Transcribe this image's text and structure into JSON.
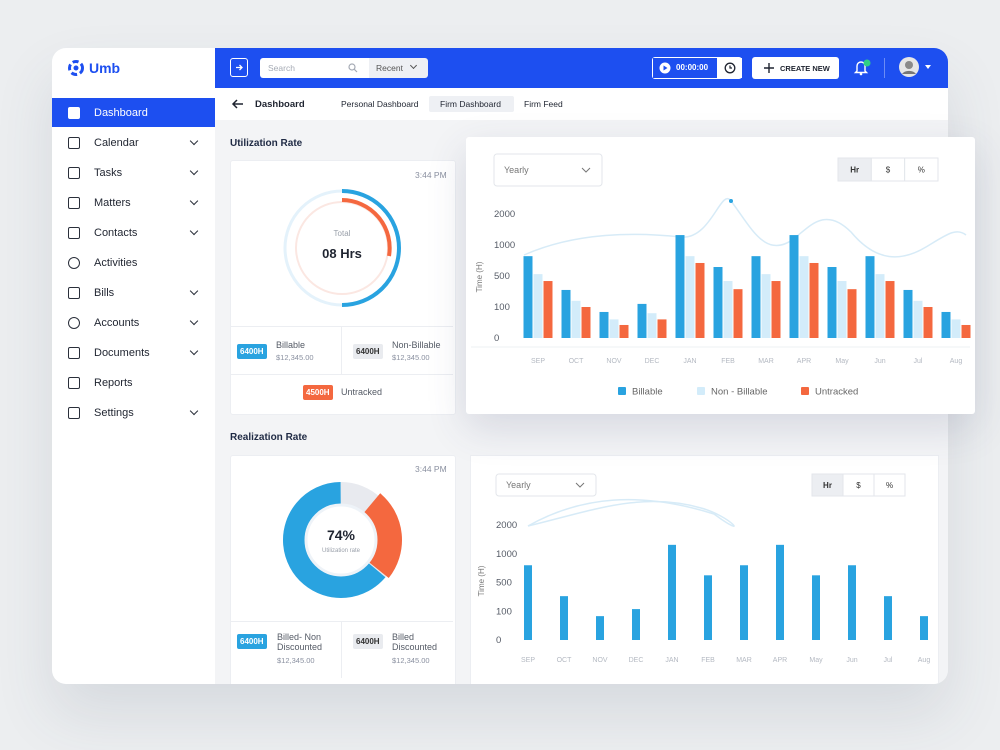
{
  "sidebar": {
    "brand": "Umb",
    "items": [
      "Dashboard",
      "Calendar",
      "Tasks",
      "Matters",
      "Contacts",
      "Activities",
      "Bills",
      "Accounts",
      "Documents",
      "Reports",
      "Settings"
    ]
  },
  "topbar": {
    "search": "Search",
    "recent": "Recent",
    "timer": "00:00:00",
    "create": "CREATE NEW"
  },
  "tabs": {
    "title": "Dashboard",
    "items": [
      "Personal Dashboard",
      "Firm Dashboard",
      "Firm Feed"
    ]
  },
  "utilization": {
    "heading": "Utilization Rate",
    "time": "3:44 PM",
    "center_label": "Total",
    "center_value": "08 Hrs",
    "stats": [
      {
        "badge": "6400H",
        "label": "Billable",
        "amount": "$12,345.00"
      },
      {
        "badge": "6400H",
        "label": "Non-Billable",
        "amount": "$12,345.00"
      }
    ],
    "untracked": {
      "badge": "4500H",
      "label": "Untracked"
    }
  },
  "realization": {
    "heading": "Realization Rate",
    "time": "3:44 PM",
    "center_value": "74%",
    "center_label": "Utilization rate",
    "stats": [
      {
        "badge": "6400H",
        "label": "Billed- Non Discounted",
        "amount": "$12,345.00"
      },
      {
        "badge": "6400H",
        "label": "Billed Discounted",
        "amount": "$12,345.00"
      }
    ]
  },
  "chart_data": [
    {
      "type": "bar",
      "period": "Yearly",
      "units": [
        "Hr",
        "$",
        "%"
      ],
      "y_label": "Time (H)",
      "categories": [
        "SEP",
        "OCT",
        "NOV",
        "DEC",
        "JAN",
        "FEB",
        "MAR",
        "APR",
        "May",
        "Jun",
        "Jul",
        "Aug"
      ],
      "series": [
        {
          "name": "Billable",
          "color": "#29a3e0",
          "values": [
            820,
            320,
            84,
            140,
            1320,
            645,
            820,
            1320,
            645,
            820,
            320,
            84
          ]
        },
        {
          "name": "Non - Billable",
          "color": "#d3ecfa",
          "values": [
            530,
            180,
            60,
            80,
            820,
            435,
            530,
            820,
            435,
            530,
            180,
            60
          ]
        },
        {
          "name": "Untracked",
          "color": "#f4683f",
          "values": [
            435,
            100,
            42,
            60,
            710,
            330,
            435,
            710,
            330,
            435,
            100,
            42
          ]
        }
      ],
      "ylim": [
        0,
        2000
      ],
      "yticks": [
        0,
        100,
        500,
        1000,
        2000
      ]
    },
    {
      "type": "bar",
      "period": "Yearly",
      "units": [
        "Hr",
        "$",
        "%"
      ],
      "y_label": "Time (H)",
      "categories": [
        "SEP",
        "OCT",
        "NOV",
        "DEC",
        "JAN",
        "FEB",
        "MAR",
        "APR",
        "May",
        "Jun",
        "Jul",
        "Aug"
      ],
      "color": "#29a3e0",
      "values": [
        800,
        310,
        83,
        130,
        1310,
        625,
        800,
        1310,
        625,
        800,
        310,
        83
      ],
      "ylim": [
        0,
        2000
      ],
      "yticks": [
        0,
        100,
        500,
        1000,
        2000
      ]
    }
  ]
}
